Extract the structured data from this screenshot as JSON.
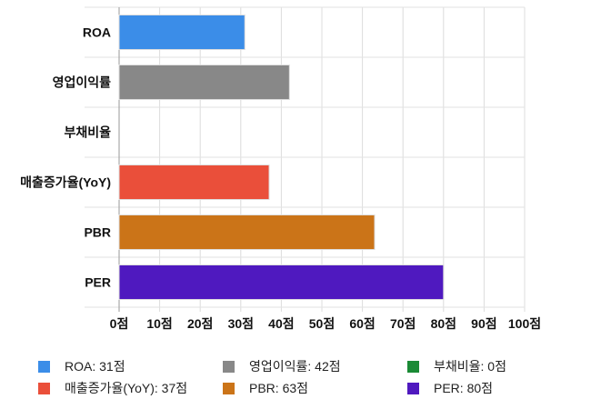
{
  "chart_data": {
    "type": "bar",
    "orientation": "horizontal",
    "categories": [
      "ROA",
      "영업이익률",
      "부채비율",
      "매출증가율(YoY)",
      "PBR",
      "PER"
    ],
    "values": [
      31,
      42,
      0,
      37,
      63,
      80
    ],
    "colors": [
      "#3b8de8",
      "#888888",
      "#1a8a35",
      "#ea4f3a",
      "#cb7418",
      "#4f19bf"
    ],
    "xlim": [
      0,
      100
    ],
    "xticks": [
      "0점",
      "10점",
      "20점",
      "30점",
      "40점",
      "50점",
      "60점",
      "70점",
      "80점",
      "90점",
      "100점"
    ],
    "grid": true,
    "legend_position": "bottom",
    "legend": [
      "ROA: 31점",
      "영업이익률: 42점",
      "부채비율: 0점",
      "매출증가율(YoY): 37점",
      "PBR: 63점",
      "PER: 80점"
    ]
  }
}
